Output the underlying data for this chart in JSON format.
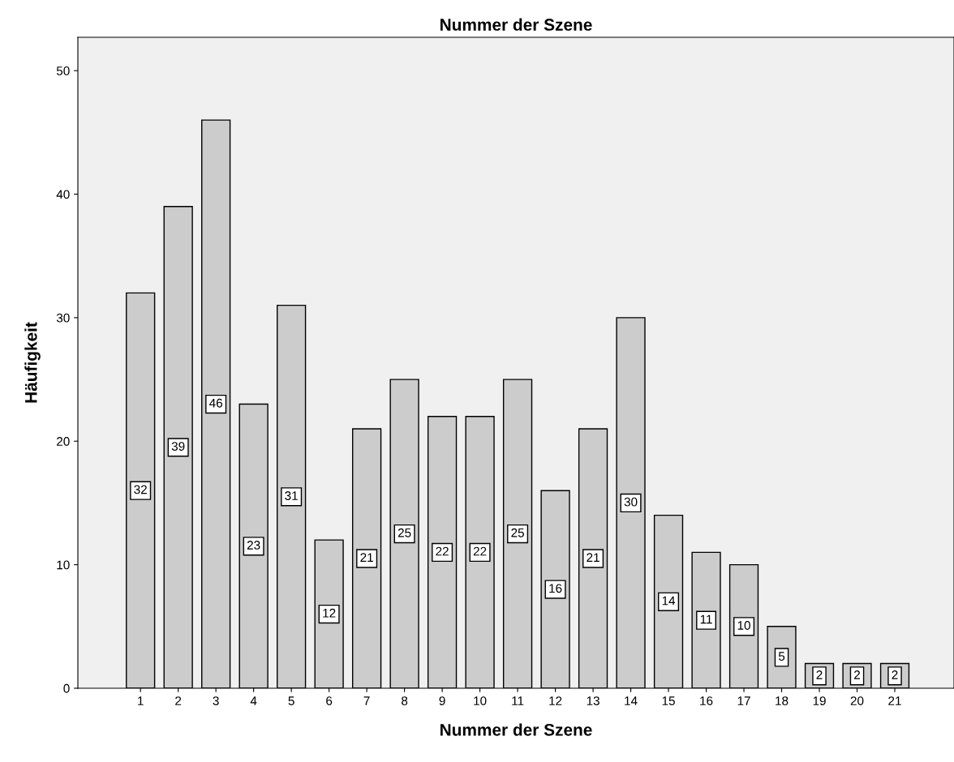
{
  "chart_data": {
    "type": "bar",
    "title": "Nummer der Szene",
    "xlabel": "Nummer der Szene",
    "ylabel": "Häufigkeit",
    "categories": [
      "1",
      "2",
      "3",
      "4",
      "5",
      "6",
      "7",
      "8",
      "9",
      "10",
      "11",
      "12",
      "13",
      "14",
      "15",
      "16",
      "17",
      "18",
      "19",
      "20",
      "21"
    ],
    "values": [
      32,
      39,
      46,
      23,
      31,
      12,
      21,
      25,
      22,
      22,
      25,
      16,
      21,
      30,
      14,
      11,
      10,
      5,
      2,
      2,
      2
    ],
    "color": "#cccccc",
    "data_labels": true,
    "grid": false,
    "ylim": [
      0,
      52.7
    ],
    "yticks": [
      0,
      10,
      20,
      30,
      40,
      50
    ]
  }
}
